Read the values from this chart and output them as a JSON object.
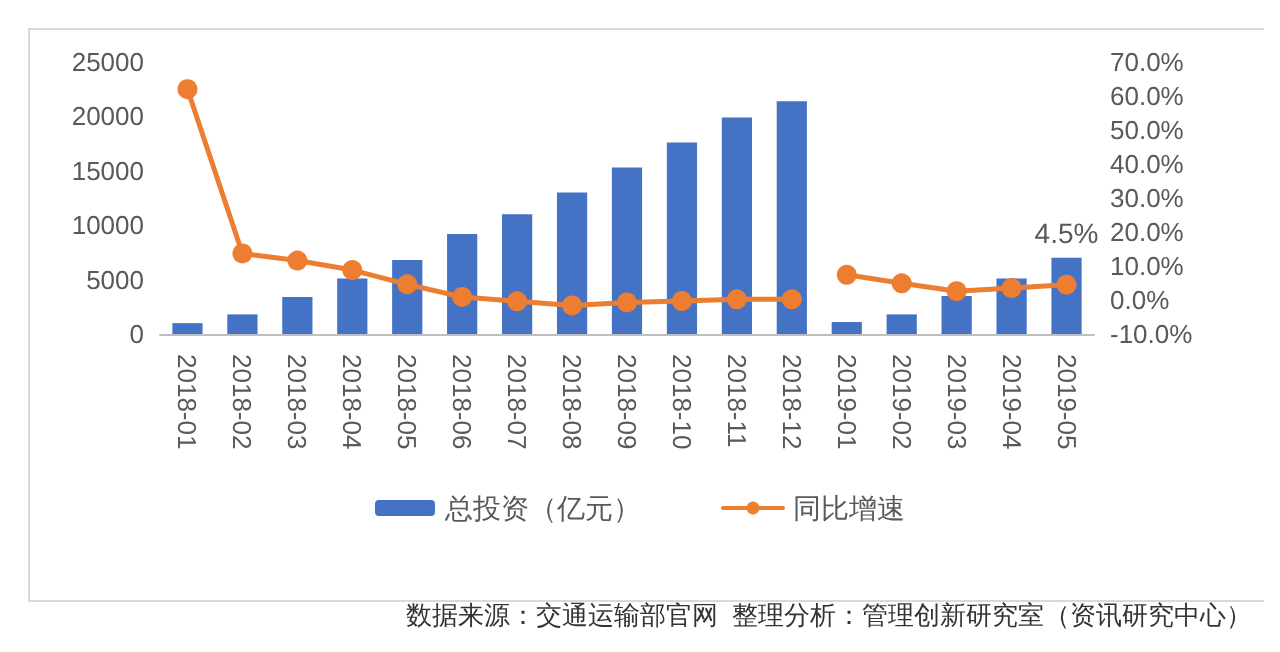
{
  "chart_data": {
    "type": "bar",
    "categories": [
      "2018-01",
      "2018-02",
      "2018-03",
      "2018-04",
      "2018-05",
      "2018-06",
      "2018-07",
      "2018-08",
      "2018-09",
      "2018-10",
      "2018-11",
      "2018-12",
      "2019-01",
      "2019-02",
      "2019-03",
      "2019-04",
      "2019-05"
    ],
    "series": [
      {
        "name": "总投资（亿元）",
        "color": "#4472c4",
        "values": [
          1000,
          1800,
          3400,
          5100,
          6800,
          9200,
          11000,
          13000,
          15300,
          17600,
          19900,
          21400,
          1100,
          1800,
          3500,
          5100,
          7000
        ]
      },
      {
        "name": "同比增速",
        "type": "line",
        "axis": "y2",
        "color": "#ed7d31",
        "values": [
          62,
          13.7,
          11.6,
          8.8,
          4.6,
          0.9,
          -0.4,
          -1.6,
          -0.7,
          -0.3,
          0.2,
          0.2,
          null,
          null,
          null,
          null,
          null
        ]
      },
      {
        "type": "line",
        "axis": "y2",
        "color": "#ed7d31",
        "values": [
          null,
          null,
          null,
          null,
          null,
          null,
          null,
          null,
          null,
          null,
          null,
          null,
          7.4,
          4.9,
          2.6,
          3.5,
          4.5
        ],
        "value_labels": [
          null,
          null,
          null,
          null,
          null,
          null,
          null,
          null,
          null,
          null,
          null,
          null,
          null,
          null,
          null,
          null,
          "4.5%"
        ]
      }
    ],
    "ylim": [
      0,
      25000
    ],
    "yticks": [
      0,
      5000,
      10000,
      15000,
      20000,
      25000
    ],
    "y2lim": [
      -10,
      70
    ],
    "y2ticks": [
      {
        "value": -10,
        "label": "-10.0%"
      },
      {
        "value": 0,
        "label": "0.0%"
      },
      {
        "value": 10,
        "label": "10.0%"
      },
      {
        "value": 20,
        "label": "20.0%"
      },
      {
        "value": 30,
        "label": "30.0%"
      },
      {
        "value": 40,
        "label": "40.0%"
      },
      {
        "value": 50,
        "label": "50.0%"
      },
      {
        "value": 60,
        "label": "60.0%"
      },
      {
        "value": 70,
        "label": "70.0%"
      }
    ],
    "marker": "circle",
    "legend": "bottom",
    "grid": false,
    "annotations": [
      "数据来源：交通运输部官网  整理分析：管理创新研究室（资讯研究中心）"
    ]
  }
}
